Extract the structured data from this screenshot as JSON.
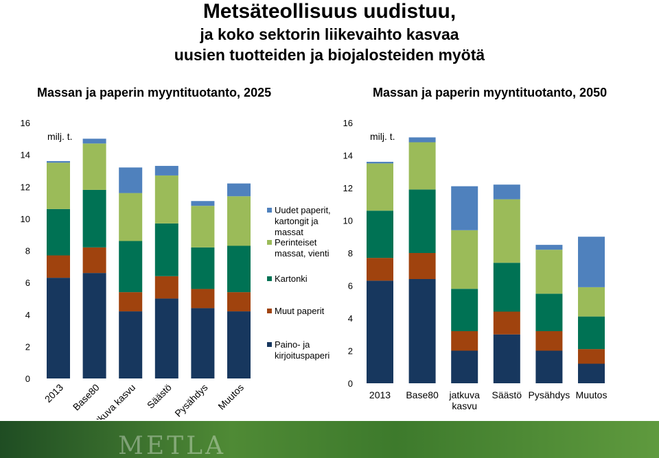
{
  "title": {
    "line1": "Metsäteollisuus uudistuu,",
    "line2": "ja koko sektorin liikevaihto kasvaa",
    "line3": "uusien tuotteiden ja biojalosteiden myötä"
  },
  "footer": {
    "logo_text": "METLA"
  },
  "legend": [
    {
      "label": "Uudet paperit, kartongit ja massat",
      "lines": [
        "Uudet paperit,",
        "kartongit ja",
        "massat"
      ],
      "color": "#4f81bd"
    },
    {
      "label": "Perinteiset massat, vienti",
      "lines": [
        "Perinteiset",
        "massat, vienti"
      ],
      "color": "#9bbb59"
    },
    {
      "label": "Kartonki",
      "lines": [
        "Kartonki"
      ],
      "color": "#007254"
    },
    {
      "label": "Muut paperit",
      "lines": [
        "Muut paperit"
      ],
      "color": "#a0430e"
    },
    {
      "label": "Paino- ja kirjoituspaperi",
      "lines": [
        "Paino- ja",
        "kirjoituspaperi"
      ],
      "color": "#17375e"
    }
  ],
  "chart_data": [
    {
      "type": "bar",
      "stacked": true,
      "title": "Massan ja paperin myyntituotanto, 2025",
      "ylabel": "milj. t.",
      "ylim": [
        0,
        16
      ],
      "yticks": [
        0,
        2,
        4,
        6,
        8,
        10,
        12,
        14,
        16
      ],
      "x_label_style": "rotated",
      "categories": [
        "2013",
        "Base80",
        "jatkuva kasvu",
        "Säästö",
        "Pysähdys",
        "Muutos"
      ],
      "series": [
        {
          "name": "Paino- ja kirjoituspaperi",
          "color": "#17375e",
          "values": [
            6.3,
            6.6,
            4.2,
            5.0,
            4.4,
            4.2
          ]
        },
        {
          "name": "Muut paperit",
          "color": "#a0430e",
          "values": [
            1.4,
            1.6,
            1.2,
            1.4,
            1.2,
            1.2
          ]
        },
        {
          "name": "Kartonki",
          "color": "#007254",
          "values": [
            2.9,
            3.6,
            3.2,
            3.3,
            2.6,
            2.9
          ]
        },
        {
          "name": "Perinteiset massat, vienti",
          "color": "#9bbb59",
          "values": [
            2.9,
            2.9,
            3.0,
            3.0,
            2.6,
            3.1
          ]
        },
        {
          "name": "Uudet paperit, kartongit ja massat",
          "color": "#4f81bd",
          "values": [
            0.1,
            0.3,
            1.6,
            0.6,
            0.3,
            0.8
          ]
        }
      ]
    },
    {
      "type": "bar",
      "stacked": true,
      "title": "Massan ja paperin myyntituotanto, 2050",
      "ylabel": "milj. t.",
      "ylim": [
        0,
        16
      ],
      "yticks": [
        0,
        2,
        4,
        6,
        8,
        10,
        12,
        14,
        16
      ],
      "x_label_style": "wrapped",
      "categories": [
        "2013",
        "Base80",
        "jatkuva kasvu",
        "Säästö",
        "Pysähdys",
        "Muutos"
      ],
      "series": [
        {
          "name": "Paino- ja kirjoituspaperi",
          "color": "#17375e",
          "values": [
            6.3,
            6.4,
            2.0,
            3.0,
            2.0,
            1.2
          ]
        },
        {
          "name": "Muut paperit",
          "color": "#a0430e",
          "values": [
            1.4,
            1.6,
            1.2,
            1.4,
            1.2,
            0.9
          ]
        },
        {
          "name": "Kartonki",
          "color": "#007254",
          "values": [
            2.9,
            3.9,
            2.6,
            3.0,
            2.3,
            2.0
          ]
        },
        {
          "name": "Perinteiset massat, vienti",
          "color": "#9bbb59",
          "values": [
            2.9,
            2.9,
            3.6,
            3.9,
            2.7,
            1.8
          ]
        },
        {
          "name": "Uudet paperit, kartongit ja massat",
          "color": "#4f81bd",
          "values": [
            0.1,
            0.3,
            2.7,
            0.9,
            0.3,
            3.1
          ]
        }
      ]
    }
  ]
}
